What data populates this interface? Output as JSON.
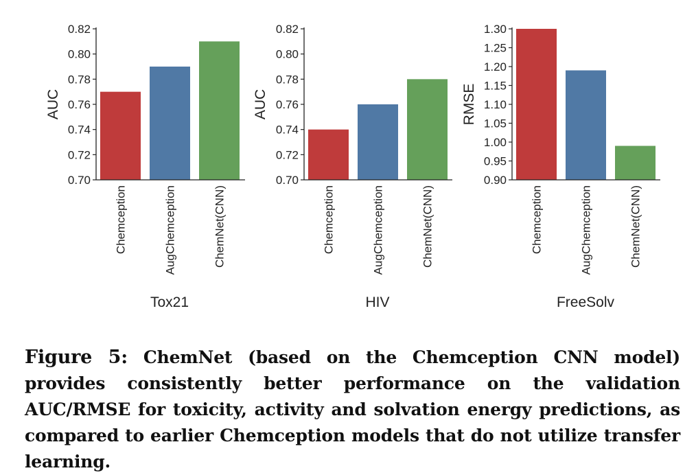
{
  "chart_data": [
    {
      "type": "bar",
      "xlabel": "Tox21",
      "ylabel": "AUC",
      "categories": [
        "Chemception",
        "AugChemception",
        "ChemNet(CNN)"
      ],
      "values": [
        0.77,
        0.79,
        0.81
      ],
      "ylim": [
        0.7,
        0.82
      ],
      "yticks": [
        "0.70",
        "0.72",
        "0.74",
        "0.76",
        "0.78",
        "0.80",
        "0.82"
      ],
      "colors": [
        "#bf3b3b",
        "#5079a5",
        "#65a05a"
      ],
      "grid": false
    },
    {
      "type": "bar",
      "xlabel": "HIV",
      "ylabel": "AUC",
      "categories": [
        "Chemception",
        "AugChemception",
        "ChemNet(CNN)"
      ],
      "values": [
        0.74,
        0.76,
        0.78
      ],
      "ylim": [
        0.7,
        0.82
      ],
      "yticks": [
        "0.70",
        "0.72",
        "0.74",
        "0.76",
        "0.78",
        "0.80",
        "0.82"
      ],
      "colors": [
        "#bf3b3b",
        "#5079a5",
        "#65a05a"
      ],
      "grid": false
    },
    {
      "type": "bar",
      "xlabel": "FreeSolv",
      "ylabel": "RMSE",
      "categories": [
        "Chemception",
        "AugChemception",
        "ChemNet(CNN)"
      ],
      "values": [
        1.3,
        1.19,
        0.99
      ],
      "ylim": [
        0.9,
        1.3
      ],
      "yticks": [
        "0.90",
        "0.95",
        "1.00",
        "1.05",
        "1.10",
        "1.15",
        "1.20",
        "1.25",
        "1.30"
      ],
      "colors": [
        "#bf3b3b",
        "#5079a5",
        "#65a05a"
      ],
      "grid": false
    }
  ],
  "caption": {
    "label": "Figure 5:",
    "text": "ChemNet (based on the Chemception CNN model) provides consistently better performance on the validation AUC/RMSE for toxicity, activity and solvation energy predictions, as compared to earlier Chemception models that do not utilize transfer learning."
  }
}
